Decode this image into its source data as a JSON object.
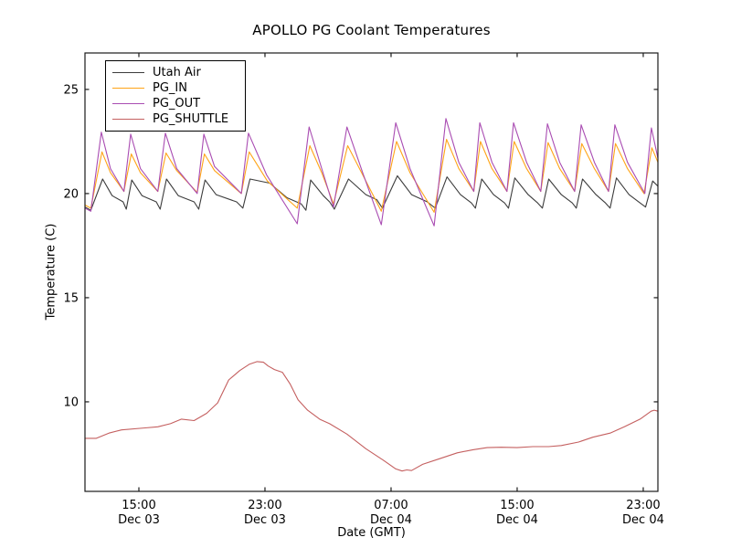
{
  "chart_data": {
    "type": "line",
    "title": "APOLLO PG Coolant Temperatures",
    "xlabel": "Date (GMT)",
    "ylabel": "Temperature (C)",
    "x_unit": "hours since Dec 03 00:00 GMT",
    "xlim_hours": [
      11.58,
      47.93
    ],
    "ylim": [
      5.7,
      26.75
    ],
    "grid": false,
    "legend_position": "upper left",
    "axis_color": "#1a1a1a",
    "x_ticks": [
      {
        "t": 15,
        "time": "15:00",
        "date": "Dec 03"
      },
      {
        "t": 23,
        "time": "23:00",
        "date": "Dec 03"
      },
      {
        "t": 31,
        "time": "07:00",
        "date": "Dec 04"
      },
      {
        "t": 39,
        "time": "15:00",
        "date": "Dec 04"
      },
      {
        "t": 47,
        "time": "23:00",
        "date": "Dec 04"
      }
    ],
    "y_ticks": [
      10,
      15,
      20,
      25
    ],
    "series": [
      {
        "name": "Utah Air",
        "color": "#3c3c3c",
        "points": [
          [
            11.58,
            19.35
          ],
          [
            11.95,
            19.2
          ],
          [
            12.7,
            20.7
          ],
          [
            13.3,
            19.9
          ],
          [
            14.0,
            19.6
          ],
          [
            14.2,
            19.25
          ],
          [
            14.55,
            20.65
          ],
          [
            15.2,
            19.9
          ],
          [
            16.1,
            19.6
          ],
          [
            16.35,
            19.25
          ],
          [
            16.75,
            20.7
          ],
          [
            17.5,
            19.9
          ],
          [
            18.5,
            19.6
          ],
          [
            18.8,
            19.25
          ],
          [
            19.2,
            20.65
          ],
          [
            19.9,
            19.95
          ],
          [
            21.2,
            19.6
          ],
          [
            21.6,
            19.3
          ],
          [
            22.05,
            20.7
          ],
          [
            23.3,
            20.5
          ],
          [
            24.4,
            19.8
          ],
          [
            25.3,
            19.5
          ],
          [
            25.6,
            19.2
          ],
          [
            25.9,
            20.65
          ],
          [
            26.7,
            19.9
          ],
          [
            27.1,
            19.6
          ],
          [
            27.4,
            19.25
          ],
          [
            28.3,
            20.7
          ],
          [
            29.4,
            19.95
          ],
          [
            30.1,
            19.7
          ],
          [
            30.45,
            19.3
          ],
          [
            31.4,
            20.85
          ],
          [
            32.3,
            19.95
          ],
          [
            33.3,
            19.6
          ],
          [
            33.8,
            19.3
          ],
          [
            34.55,
            20.8
          ],
          [
            35.4,
            19.95
          ],
          [
            36.1,
            19.55
          ],
          [
            36.35,
            19.3
          ],
          [
            36.75,
            20.7
          ],
          [
            37.5,
            19.95
          ],
          [
            38.2,
            19.55
          ],
          [
            38.45,
            19.3
          ],
          [
            38.85,
            20.75
          ],
          [
            39.7,
            19.95
          ],
          [
            40.3,
            19.55
          ],
          [
            40.6,
            19.3
          ],
          [
            41.0,
            20.7
          ],
          [
            41.8,
            19.95
          ],
          [
            42.5,
            19.55
          ],
          [
            42.75,
            19.3
          ],
          [
            43.15,
            20.7
          ],
          [
            44.0,
            19.95
          ],
          [
            44.6,
            19.55
          ],
          [
            44.9,
            19.3
          ],
          [
            45.3,
            20.75
          ],
          [
            46.1,
            19.95
          ],
          [
            46.8,
            19.55
          ],
          [
            47.15,
            19.35
          ],
          [
            47.6,
            20.6
          ],
          [
            47.93,
            20.35
          ]
        ]
      },
      {
        "name": "PG_IN",
        "color": "#ffa417",
        "points": [
          [
            11.58,
            19.45
          ],
          [
            11.95,
            19.3
          ],
          [
            12.66,
            22.0
          ],
          [
            13.2,
            21.0
          ],
          [
            14.05,
            20.1
          ],
          [
            14.52,
            21.9
          ],
          [
            15.1,
            21.0
          ],
          [
            16.2,
            20.1
          ],
          [
            16.72,
            21.95
          ],
          [
            17.4,
            21.1
          ],
          [
            18.7,
            20.05
          ],
          [
            19.16,
            21.9
          ],
          [
            19.8,
            21.1
          ],
          [
            21.5,
            20.0
          ],
          [
            22.0,
            22.0
          ],
          [
            23.15,
            20.6
          ],
          [
            25.05,
            19.3
          ],
          [
            25.85,
            22.3
          ],
          [
            26.6,
            21.0
          ],
          [
            27.35,
            19.5
          ],
          [
            28.25,
            22.3
          ],
          [
            29.2,
            20.9
          ],
          [
            30.38,
            19.15
          ],
          [
            31.35,
            22.5
          ],
          [
            32.2,
            21.0
          ],
          [
            33.73,
            19.1
          ],
          [
            34.52,
            22.6
          ],
          [
            35.3,
            21.2
          ],
          [
            36.25,
            20.1
          ],
          [
            36.67,
            22.5
          ],
          [
            37.4,
            21.2
          ],
          [
            38.35,
            20.1
          ],
          [
            38.81,
            22.5
          ],
          [
            39.6,
            21.2
          ],
          [
            40.5,
            20.1
          ],
          [
            40.96,
            22.45
          ],
          [
            41.7,
            21.2
          ],
          [
            42.65,
            20.1
          ],
          [
            43.1,
            22.4
          ],
          [
            43.9,
            21.2
          ],
          [
            44.8,
            20.1
          ],
          [
            45.24,
            22.4
          ],
          [
            46.0,
            21.2
          ],
          [
            47.05,
            20.0
          ],
          [
            47.55,
            22.2
          ],
          [
            47.93,
            21.5
          ]
        ]
      },
      {
        "name": "PG_OUT",
        "color": "#a94cb2",
        "points": [
          [
            11.58,
            19.3
          ],
          [
            11.95,
            19.15
          ],
          [
            12.62,
            22.95
          ],
          [
            13.2,
            21.2
          ],
          [
            14.05,
            20.1
          ],
          [
            14.48,
            22.85
          ],
          [
            15.1,
            21.2
          ],
          [
            16.2,
            20.1
          ],
          [
            16.68,
            22.9
          ],
          [
            17.4,
            21.2
          ],
          [
            18.7,
            20.0
          ],
          [
            19.12,
            22.85
          ],
          [
            19.8,
            21.3
          ],
          [
            21.5,
            20.0
          ],
          [
            21.95,
            22.9
          ],
          [
            23.1,
            20.9
          ],
          [
            25.05,
            18.55
          ],
          [
            25.8,
            23.2
          ],
          [
            26.6,
            21.2
          ],
          [
            27.35,
            19.35
          ],
          [
            28.2,
            23.2
          ],
          [
            29.2,
            21.0
          ],
          [
            30.38,
            18.5
          ],
          [
            31.3,
            23.4
          ],
          [
            32.2,
            21.2
          ],
          [
            33.73,
            18.45
          ],
          [
            34.48,
            23.6
          ],
          [
            35.3,
            21.5
          ],
          [
            36.25,
            20.1
          ],
          [
            36.63,
            23.4
          ],
          [
            37.4,
            21.5
          ],
          [
            38.35,
            20.1
          ],
          [
            38.77,
            23.4
          ],
          [
            39.6,
            21.5
          ],
          [
            40.5,
            20.1
          ],
          [
            40.92,
            23.35
          ],
          [
            41.7,
            21.5
          ],
          [
            42.65,
            20.1
          ],
          [
            43.06,
            23.3
          ],
          [
            43.9,
            21.5
          ],
          [
            44.8,
            20.1
          ],
          [
            45.2,
            23.3
          ],
          [
            46.0,
            21.5
          ],
          [
            47.1,
            20.0
          ],
          [
            47.52,
            23.15
          ],
          [
            47.93,
            21.7
          ]
        ]
      },
      {
        "name": "PG_SHUTTLE",
        "color": "#c45f5f",
        "points": [
          [
            11.58,
            8.25
          ],
          [
            12.3,
            8.25
          ],
          [
            13.1,
            8.5
          ],
          [
            13.9,
            8.65
          ],
          [
            15.4,
            8.75
          ],
          [
            16.2,
            8.8
          ],
          [
            17.0,
            8.95
          ],
          [
            17.7,
            9.17
          ],
          [
            18.5,
            9.1
          ],
          [
            19.3,
            9.45
          ],
          [
            20.0,
            9.95
          ],
          [
            20.7,
            11.05
          ],
          [
            21.4,
            11.5
          ],
          [
            22.0,
            11.8
          ],
          [
            22.5,
            11.93
          ],
          [
            22.9,
            11.9
          ],
          [
            23.2,
            11.72
          ],
          [
            23.6,
            11.55
          ],
          [
            24.1,
            11.42
          ],
          [
            24.6,
            10.85
          ],
          [
            25.1,
            10.1
          ],
          [
            25.7,
            9.6
          ],
          [
            26.5,
            9.15
          ],
          [
            27.1,
            8.95
          ],
          [
            28.2,
            8.45
          ],
          [
            29.4,
            7.75
          ],
          [
            30.5,
            7.2
          ],
          [
            31.3,
            6.78
          ],
          [
            31.7,
            6.68
          ],
          [
            32.0,
            6.73
          ],
          [
            32.3,
            6.7
          ],
          [
            33.0,
            7.0
          ],
          [
            34.0,
            7.25
          ],
          [
            35.2,
            7.55
          ],
          [
            36.2,
            7.7
          ],
          [
            37.1,
            7.8
          ],
          [
            38.0,
            7.82
          ],
          [
            39.0,
            7.8
          ],
          [
            40.0,
            7.85
          ],
          [
            41.0,
            7.85
          ],
          [
            41.8,
            7.9
          ],
          [
            42.9,
            8.07
          ],
          [
            43.8,
            8.3
          ],
          [
            44.9,
            8.5
          ],
          [
            45.8,
            8.8
          ],
          [
            46.8,
            9.17
          ],
          [
            47.5,
            9.55
          ],
          [
            47.7,
            9.6
          ],
          [
            47.93,
            9.55
          ]
        ]
      }
    ]
  }
}
